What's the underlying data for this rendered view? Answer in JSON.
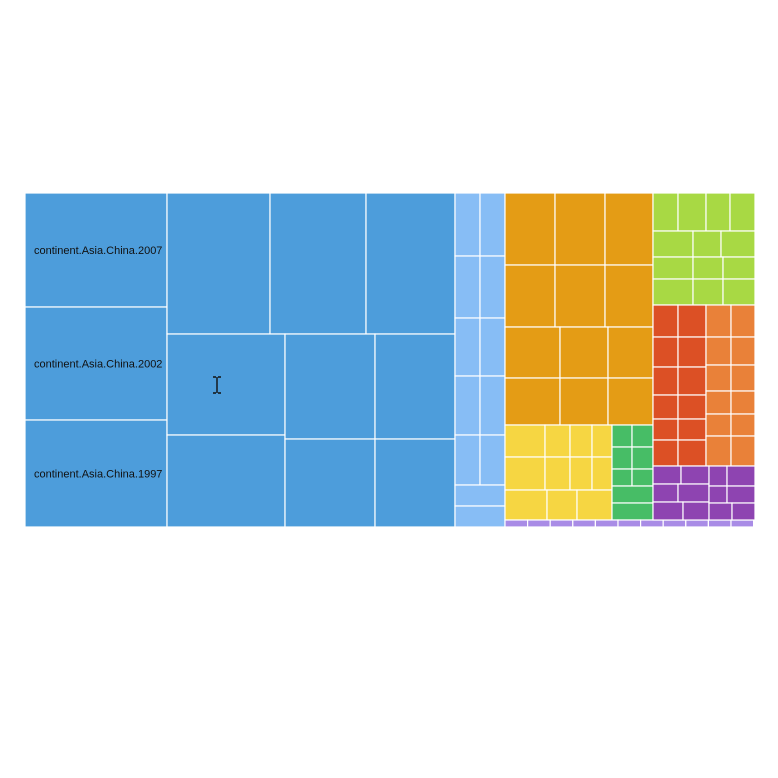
{
  "chart_data": {
    "type": "treemap",
    "labels": [
      "continent.Asia.China.2007",
      "continent.Asia.China.2002",
      "continent.Asia.China.1997"
    ],
    "colors": {
      "asia_main": "#4d9ddb",
      "asia_light": "#87bdf5",
      "orange": "#e49c15",
      "yellow": "#f6d642",
      "green": "#47bd66",
      "lime": "#a8d944",
      "red": "#dc5025",
      "orange2": "#e98139",
      "purple": "#8e44b1",
      "lavender": "#a98ce6",
      "border": "#ffffff"
    }
  },
  "cursor": {
    "icon": "text-cursor-icon"
  }
}
